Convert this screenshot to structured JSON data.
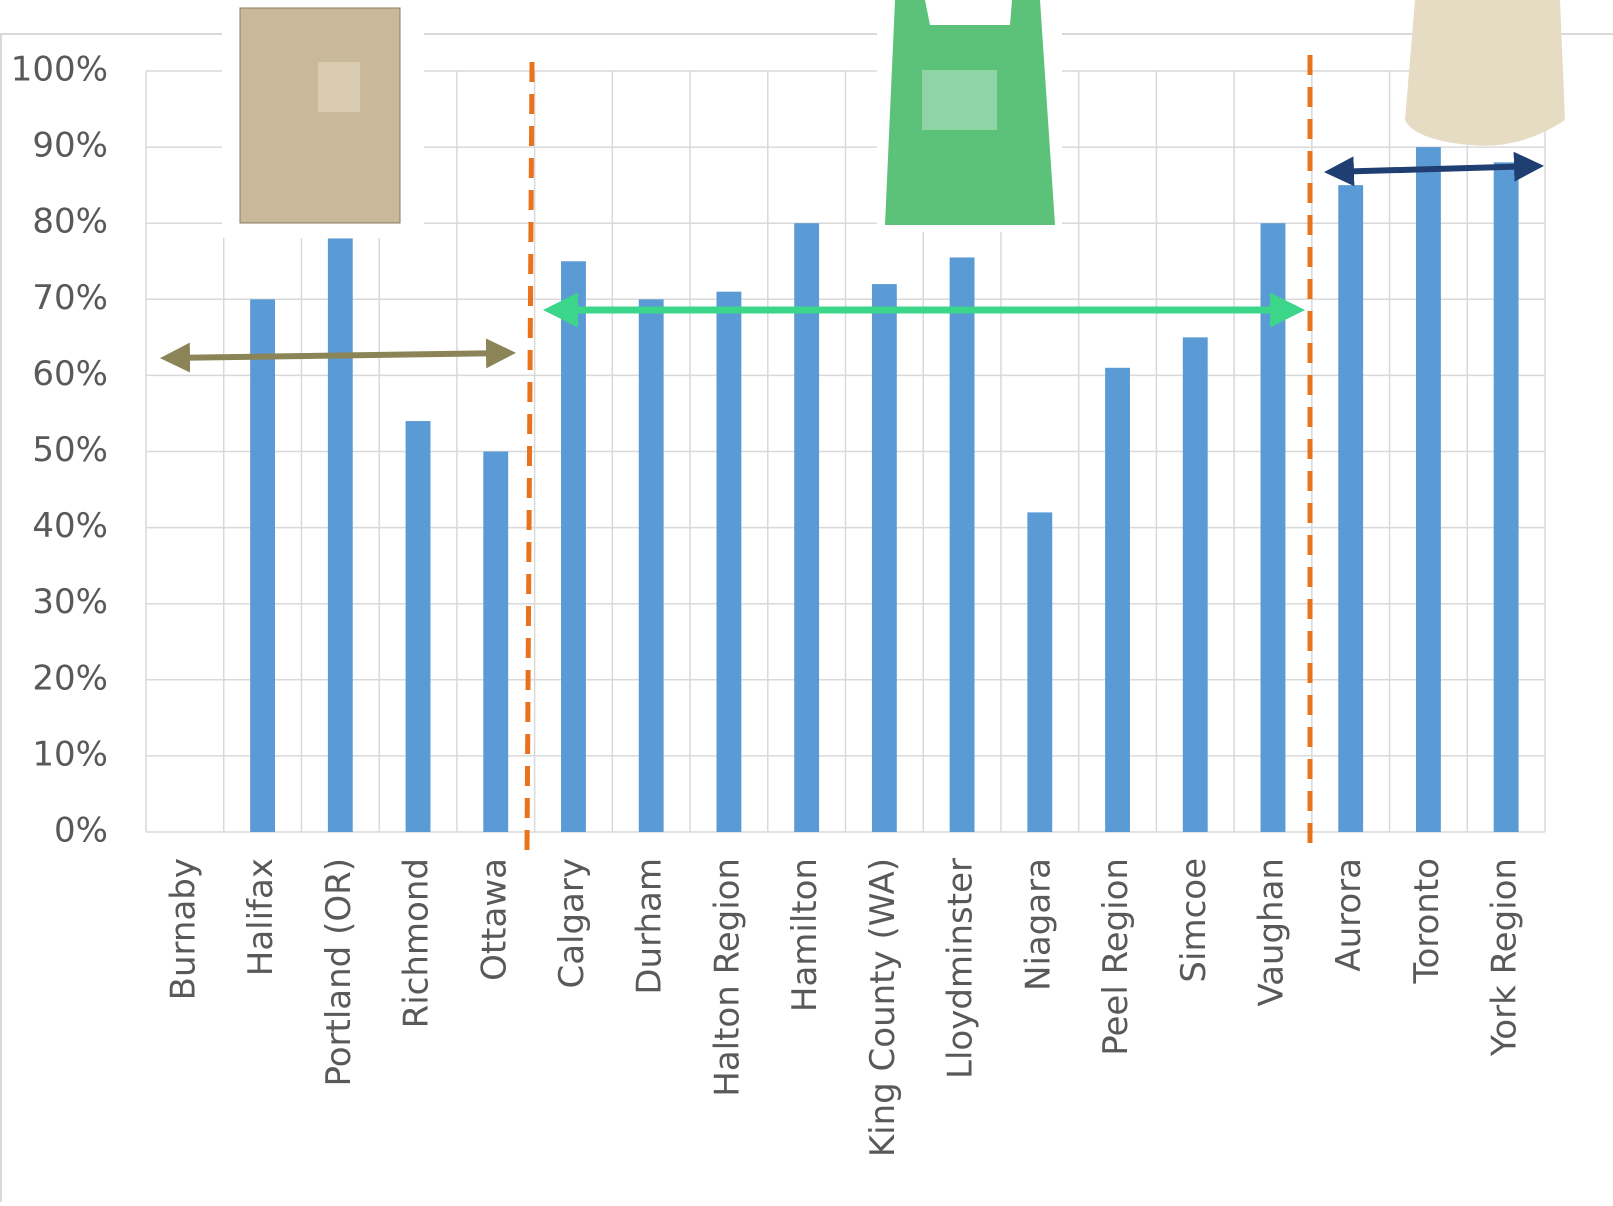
{
  "chart_data": {
    "type": "bar",
    "categories": [
      "Burnaby",
      "Halifax",
      "Portland (OR)",
      "Richmond",
      "Ottawa",
      "Calgary",
      "Durham",
      "Halton Region",
      "Hamilton",
      "King County (WA)",
      "Lloydminster",
      "Niagara",
      "Peel Region",
      "Simcoe",
      "Vaughan",
      "Aurora",
      "Toronto",
      "York Region"
    ],
    "values": [
      null,
      70,
      78,
      54,
      50,
      75,
      70,
      71,
      80,
      72,
      75.5,
      42,
      61,
      65,
      80,
      85,
      90,
      88
    ],
    "color": "#5b9bd5",
    "ylim": [
      0,
      100
    ],
    "yticks": [
      {
        "value": 0,
        "label": "0%"
      },
      {
        "value": 10,
        "label": "10%"
      },
      {
        "value": 20,
        "label": "20%"
      },
      {
        "value": 30,
        "label": "30%"
      },
      {
        "value": 40,
        "label": "40%"
      },
      {
        "value": 50,
        "label": "50%"
      },
      {
        "value": 60,
        "label": "60%"
      },
      {
        "value": 70,
        "label": "70%"
      },
      {
        "value": 80,
        "label": "80%"
      },
      {
        "value": 90,
        "label": "90%"
      },
      {
        "value": 100,
        "label": "100%"
      }
    ],
    "grid": true
  }
}
